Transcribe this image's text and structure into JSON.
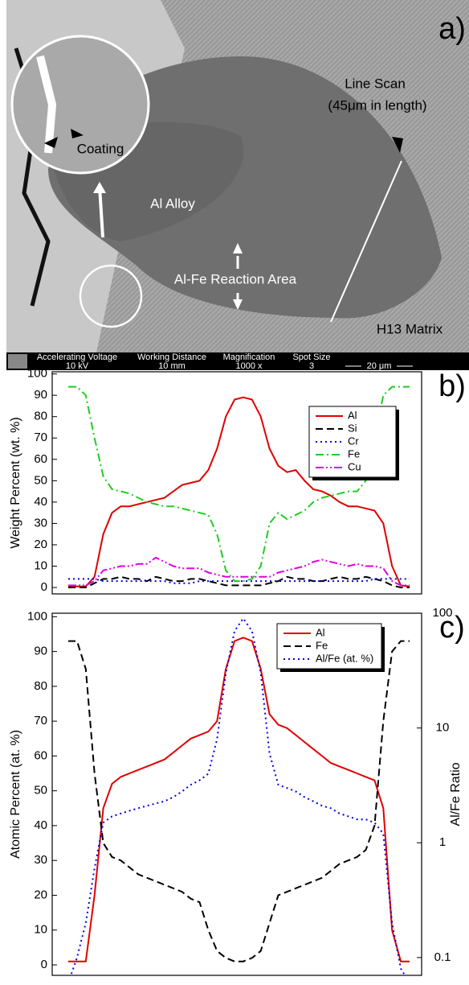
{
  "sem_image": {
    "panel_label": "a)",
    "annotations": {
      "line_scan": [
        "Line Scan",
        "(45μm in length)"
      ],
      "coating": "Coating",
      "al_alloy": "Al Alloy",
      "reaction_area": "Al-Fe Reaction Area",
      "matrix": "H13 Matrix"
    },
    "info_bar": {
      "headers": [
        "Accelerating Voltage",
        "Working Distance",
        "Magnification",
        "Spot Size"
      ],
      "values": [
        "10 kV",
        "10 mm",
        "1000 x",
        "3"
      ],
      "scale_bar": "20 μm"
    }
  },
  "chart_data": [
    {
      "type": "line",
      "panel_label": "b)",
      "y_label": "Weight Percent (wt. %)",
      "ylim": [
        -3,
        101
      ],
      "yticks": [
        0,
        10,
        20,
        30,
        40,
        50,
        60,
        70,
        80,
        90,
        100
      ],
      "legend": "upper right",
      "series": [
        {
          "name": "Al",
          "color": "#e00000",
          "style": "solid",
          "values": [
            0.5,
            0.5,
            0.5,
            5,
            25,
            35,
            38,
            38,
            39,
            40,
            41,
            42,
            45,
            48,
            49,
            50,
            55,
            65,
            80,
            88,
            89,
            88,
            80,
            65,
            57,
            54,
            55,
            50,
            46,
            45,
            43,
            40,
            38,
            38,
            37,
            36,
            30,
            10,
            1,
            0.5
          ]
        },
        {
          "name": "Si",
          "color": "#000000",
          "style": "dashed",
          "values": [
            0,
            0,
            0,
            2,
            4,
            4,
            5,
            4,
            4,
            3,
            5,
            4,
            3,
            3,
            4,
            4,
            3,
            2,
            1,
            1,
            1,
            1,
            1,
            2,
            3,
            5,
            4,
            4,
            3,
            3,
            4,
            5,
            4,
            4,
            5,
            4,
            3,
            1,
            0,
            0
          ]
        },
        {
          "name": "Cr",
          "color": "#0000e0",
          "style": "dotted",
          "values": [
            4,
            4,
            4,
            4,
            3,
            3,
            3,
            3,
            3,
            3,
            3,
            3,
            2,
            2,
            2,
            3,
            3,
            3,
            3,
            3,
            3,
            3,
            3,
            3,
            3,
            3,
            3,
            3,
            3,
            3,
            3,
            3,
            3,
            3,
            3,
            4,
            4,
            4,
            4,
            4
          ]
        },
        {
          "name": "Fe",
          "color": "#22cc22",
          "style": "dashdot",
          "values": [
            94,
            94,
            90,
            70,
            52,
            46,
            45,
            44,
            42,
            40,
            39,
            38,
            38,
            37,
            36,
            35,
            34,
            25,
            8,
            3,
            3,
            4,
            10,
            30,
            35,
            32,
            34,
            36,
            40,
            42,
            43,
            44,
            45,
            45,
            50,
            70,
            90,
            94,
            94,
            94
          ]
        },
        {
          "name": "Cu",
          "color": "#e000e0",
          "style": "dashdotdot",
          "values": [
            1,
            1,
            1,
            3,
            8,
            9,
            10,
            10,
            11,
            11,
            14,
            12,
            10,
            9,
            9,
            9,
            7,
            6,
            5,
            5,
            5,
            5,
            5,
            5,
            7,
            8,
            9,
            10,
            12,
            13,
            12,
            11,
            10,
            11,
            10,
            10,
            9,
            3,
            1,
            1
          ]
        }
      ]
    },
    {
      "type": "line",
      "panel_label": "c)",
      "y_label": "Atomic Percent (at. %)",
      "y2_label": "Al/Fe Ratio",
      "ylim": [
        -3,
        101
      ],
      "yticks": [
        0,
        10,
        20,
        30,
        40,
        50,
        60,
        70,
        80,
        90,
        100
      ],
      "y2lim": [
        0.07,
        100
      ],
      "y2ticks": [
        0.1,
        1,
        10,
        100
      ],
      "y2scale": "log",
      "legend": "upper right",
      "series": [
        {
          "name": "Al",
          "color": "#e00000",
          "style": "solid",
          "values": [
            1,
            1,
            1,
            20,
            45,
            52,
            54,
            55,
            56,
            57,
            58,
            59,
            61,
            63,
            65,
            66,
            67,
            70,
            85,
            93,
            94,
            93,
            85,
            72,
            69,
            68,
            66,
            64,
            62,
            60,
            58,
            57,
            56,
            55,
            54,
            53,
            45,
            10,
            1,
            1
          ]
        },
        {
          "name": "Fe",
          "color": "#000000",
          "style": "dashed",
          "values": [
            93,
            93,
            85,
            55,
            35,
            31,
            30,
            28,
            26,
            25,
            24,
            23,
            22,
            21,
            19,
            18,
            10,
            4,
            2,
            1,
            1,
            2,
            4,
            12,
            20,
            21,
            22,
            23,
            24,
            25,
            27,
            29,
            30,
            31,
            33,
            40,
            70,
            90,
            93,
            93
          ]
        },
        {
          "name": "Al/Fe (at. %)",
          "color": "#0000e0",
          "style": "dotted",
          "axis": "y2",
          "values": [
            0.06,
            0.1,
            0.2,
            0.6,
            1.5,
            1.7,
            1.8,
            1.9,
            2.0,
            2.1,
            2.2,
            2.3,
            2.5,
            2.8,
            3.2,
            3.5,
            4,
            8,
            30,
            70,
            90,
            70,
            30,
            6,
            3.2,
            3,
            2.8,
            2.5,
            2.3,
            2.1,
            2,
            1.8,
            1.7,
            1.6,
            1.6,
            1.5,
            1.2,
            0.2,
            0.08,
            0.06
          ]
        }
      ]
    }
  ]
}
